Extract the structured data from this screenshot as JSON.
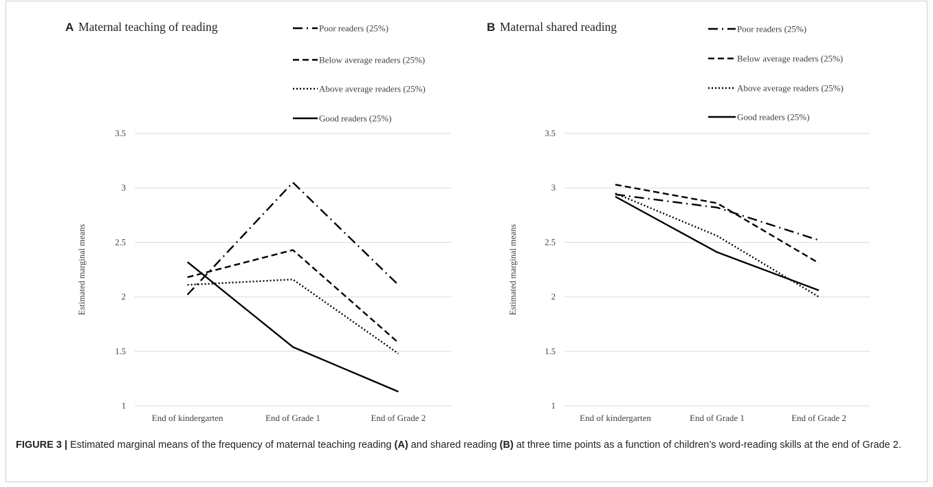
{
  "chart_data": [
    {
      "type": "line",
      "panel_letter": "A",
      "title": "Maternal teaching of reading",
      "ylabel": "Estimated marginal means",
      "xlabel": "",
      "ylim": [
        1,
        3.5
      ],
      "yticks": [
        "1",
        "1.5",
        "2",
        "2.5",
        "3",
        "3.5"
      ],
      "categories": [
        "End of kindergarten",
        "End of Grade 1",
        "End of Grade 2"
      ],
      "grid": true,
      "legend_position": "top-right",
      "series": [
        {
          "name": "Poor readers (25%)",
          "style": "dash-dot",
          "values": [
            2.02,
            3.05,
            2.11
          ]
        },
        {
          "name": "Below average readers (25%)",
          "style": "dashed",
          "values": [
            2.18,
            2.43,
            1.58
          ]
        },
        {
          "name": "Above average readers (25%)",
          "style": "dotted",
          "values": [
            2.11,
            2.16,
            1.48
          ]
        },
        {
          "name": "Good readers (25%)",
          "style": "solid",
          "values": [
            2.32,
            1.54,
            1.13
          ]
        }
      ]
    },
    {
      "type": "line",
      "panel_letter": "B",
      "title": "Maternal shared reading",
      "ylabel": "Estimated marginal means",
      "xlabel": "",
      "ylim": [
        1,
        3.5
      ],
      "yticks": [
        "1",
        "1.5",
        "2",
        "2.5",
        "3",
        "3.5"
      ],
      "categories": [
        "End of kindergarten",
        "End of Grade 1",
        "End of Grade 2"
      ],
      "grid": true,
      "legend_position": "top-right",
      "series": [
        {
          "name": "Poor readers (25%)",
          "style": "dash-dot",
          "values": [
            2.94,
            2.82,
            2.52
          ]
        },
        {
          "name": "Below average readers (25%)",
          "style": "dashed",
          "values": [
            3.03,
            2.86,
            2.31
          ]
        },
        {
          "name": "Above average readers (25%)",
          "style": "dotted",
          "values": [
            2.95,
            2.56,
            2.0
          ]
        },
        {
          "name": "Good readers (25%)",
          "style": "solid",
          "values": [
            2.92,
            2.41,
            2.06
          ]
        }
      ]
    }
  ],
  "caption": {
    "label": "FIGURE 3 |",
    "part1": " Estimated marginal means of the frequency of maternal teaching reading ",
    "ref_a": "(A)",
    "part2": " and shared reading ",
    "ref_b": "(B)",
    "part3": " at three time points as a function of children’s word-reading skills at the end of Grade 2."
  },
  "colors": {
    "line": "#000000",
    "grid": "#d9d9d9",
    "text": "#404040",
    "border": "#c9cfd6"
  }
}
